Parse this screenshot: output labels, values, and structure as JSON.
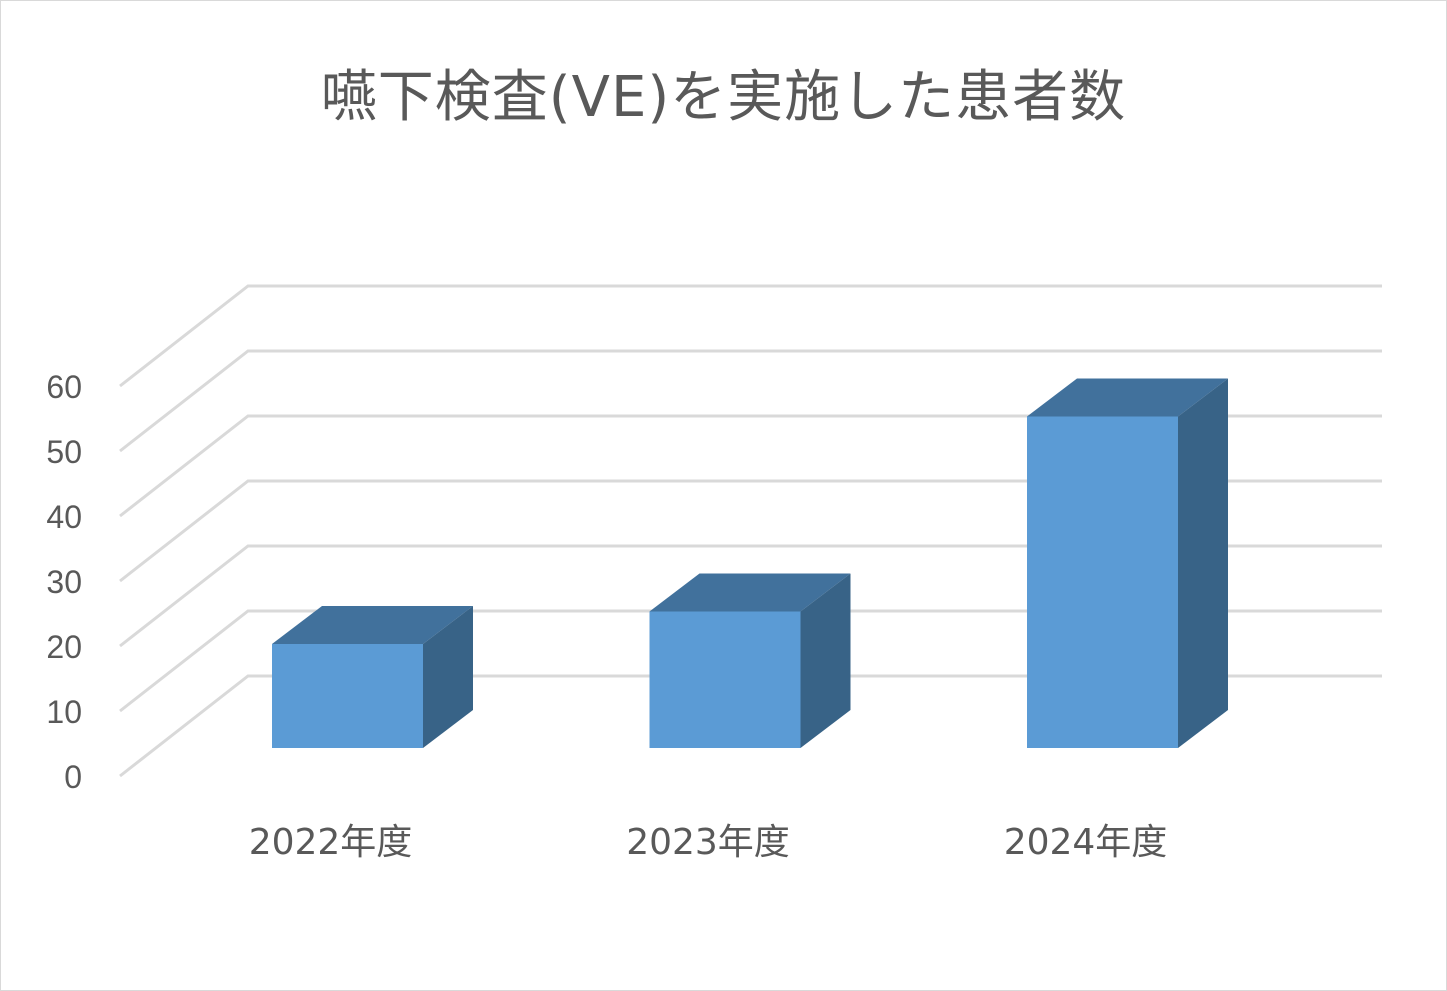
{
  "chart_data": {
    "type": "bar",
    "style": "3d-column",
    "title": "嚥下検査(VE)を実施した患者数",
    "categories": [
      "2022年度",
      "2023年度",
      "2024年度"
    ],
    "values": [
      16,
      21,
      51
    ],
    "ylim": [
      0,
      60
    ],
    "yticks": [
      0,
      10,
      20,
      30,
      40,
      50,
      60
    ],
    "grid": true,
    "legend": "none",
    "colors": {
      "bar_front": "#5b9bd5",
      "bar_top": "#41719c",
      "bar_side": "#386387",
      "grid": "#d9d9d9",
      "text": "#595959"
    }
  }
}
